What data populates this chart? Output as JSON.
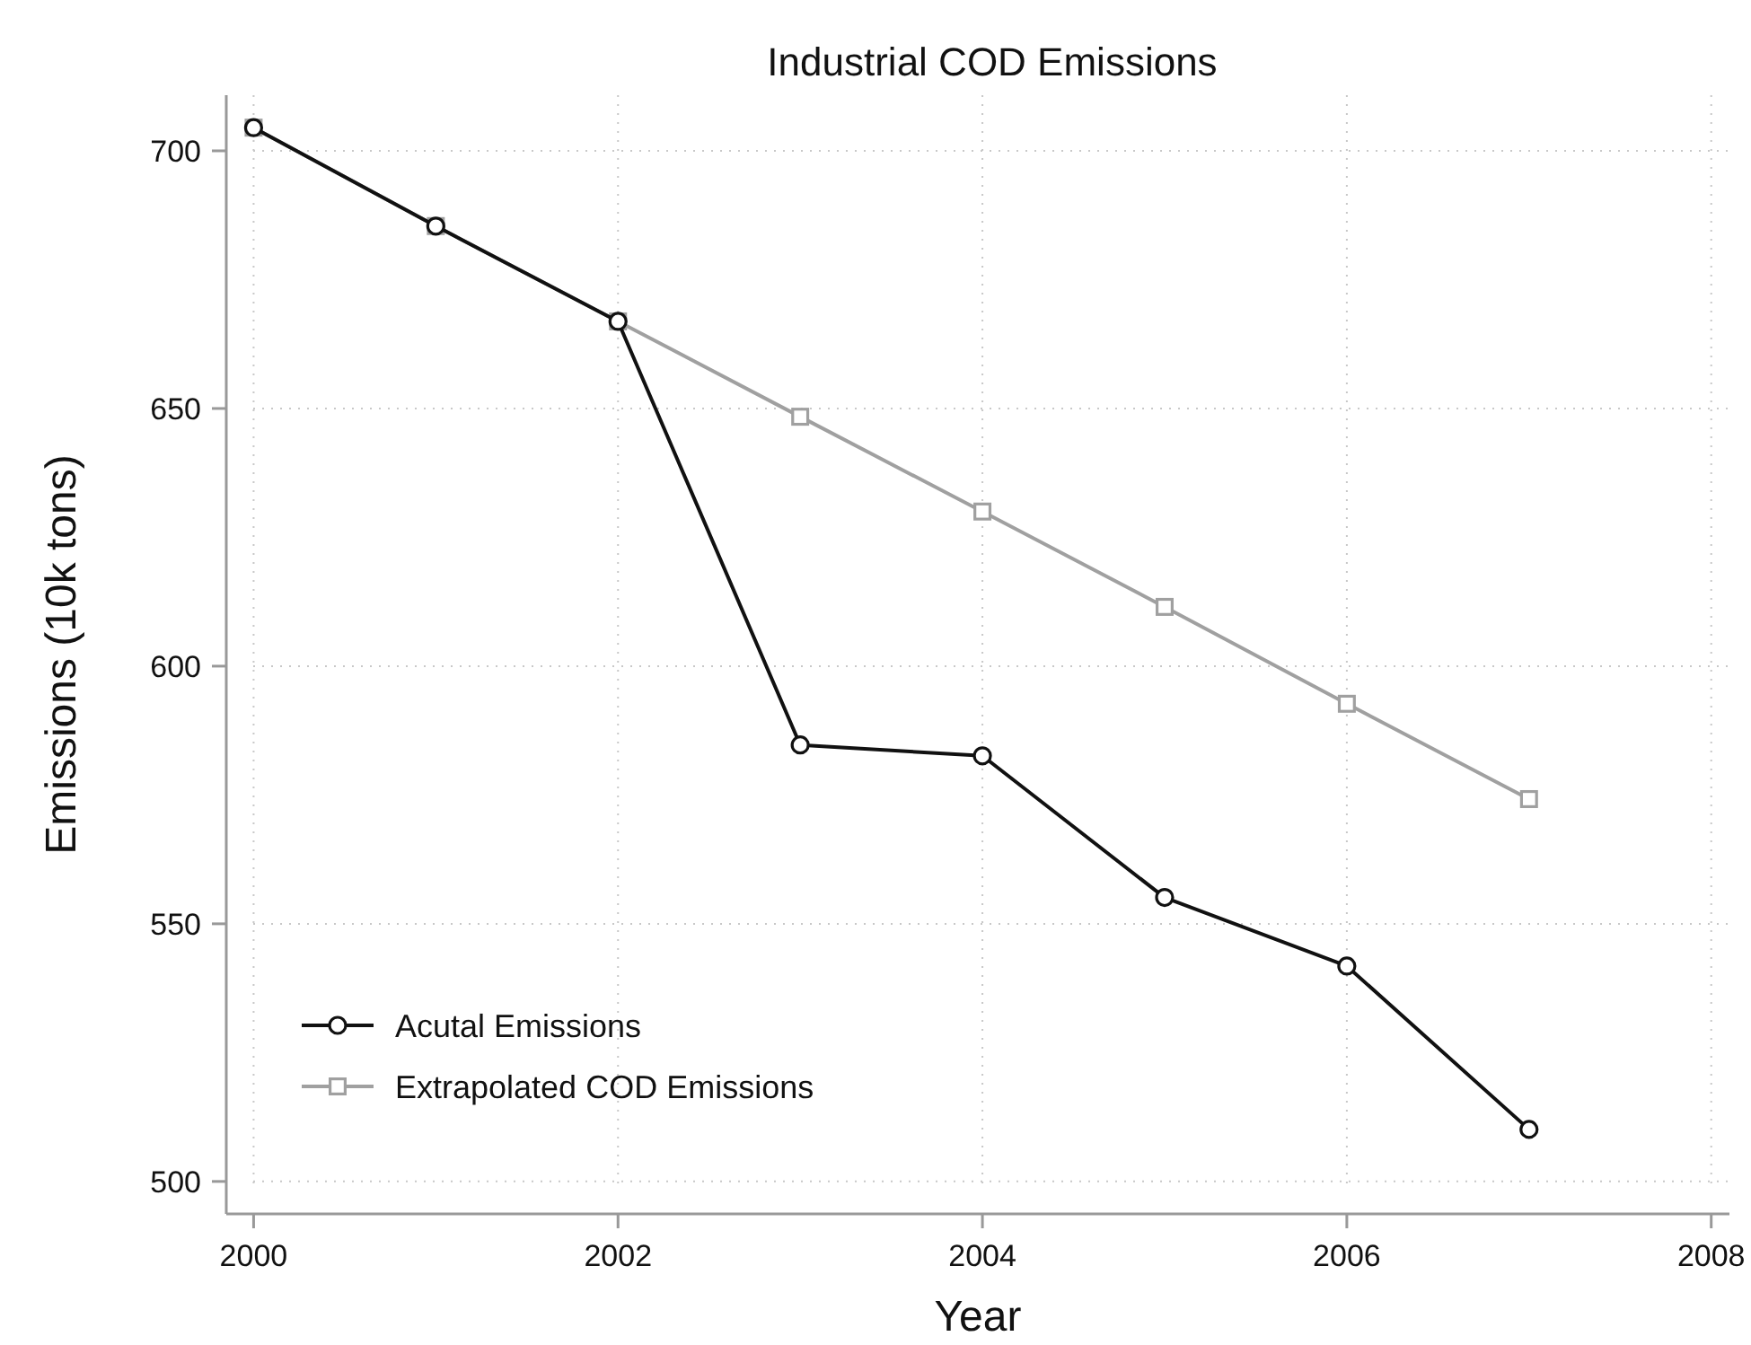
{
  "chart_data": {
    "type": "line",
    "title": "Industrial COD Emissions",
    "xlabel": "Year",
    "ylabel": "Emissions (10k tons)",
    "x": [
      2000,
      2001,
      2002,
      2003,
      2004,
      2005,
      2006,
      2007
    ],
    "series": [
      {
        "name": "Acutal Emissions",
        "color": "#111111",
        "marker": "circle",
        "values": [
          704.5,
          685.4,
          666.9,
          584.7,
          582.6,
          555.1,
          541.8,
          510.1
        ]
      },
      {
        "name": "Extrapolated COD Emissions",
        "color": "#a0a0a0",
        "marker": "square",
        "values": [
          704.5,
          685.4,
          666.9,
          648.4,
          630.0,
          611.5,
          592.7,
          574.2
        ]
      }
    ],
    "xlim": [
      1999.85,
      2008.1
    ],
    "ylim": [
      493.7,
      710.8
    ],
    "xticks": [
      2000,
      2002,
      2004,
      2006,
      2008
    ],
    "yticks": [
      500,
      550,
      600,
      650,
      700
    ],
    "grid": true,
    "legend": "bottom left",
    "line_style": "solid"
  }
}
